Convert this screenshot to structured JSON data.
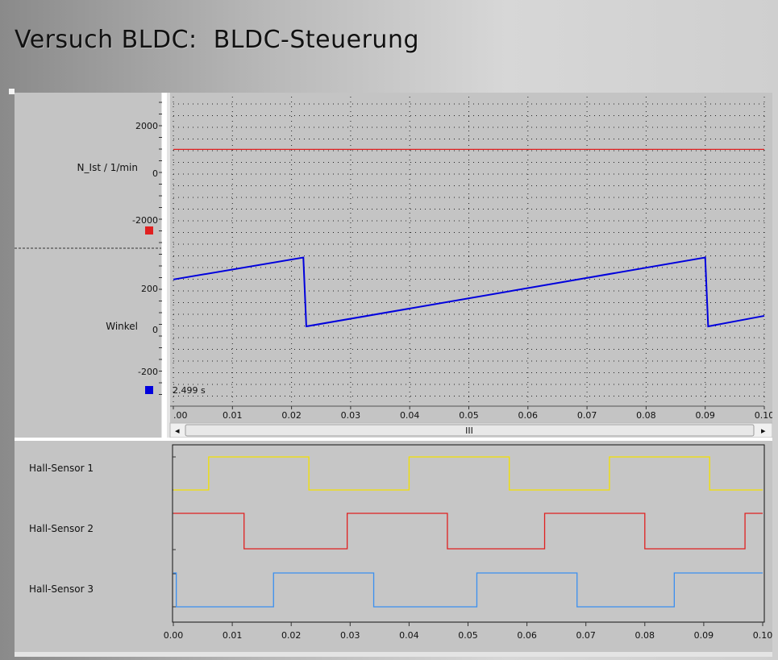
{
  "window": {
    "title": "Versuch BLDC:  BLDC-Steuerung"
  },
  "upper_plot": {
    "cursor_time": "2.499 s",
    "scroll_thumb_glyph": "III",
    "scroll_left_glyph": "◂",
    "scroll_right_glyph": "▸"
  },
  "lower_plot": {},
  "colors": {
    "n_ist": "#e02020",
    "winkel": "#0000dd",
    "hall1": "#f2e000",
    "hall2": "#e02020",
    "hall3": "#3a8ff0",
    "plot_bg": "#c6c6c6"
  },
  "chart_data": [
    {
      "type": "line",
      "ylabel": "N_Ist / 1/min",
      "y_ticks": [
        "2000",
        "0",
        "-2000"
      ],
      "ylim": [
        -3000,
        3000
      ],
      "x_ticks": [
        ".00",
        "0.01",
        "0.02",
        "0.03",
        "0.04",
        "0.05",
        "0.06",
        "0.07",
        "0.08",
        "0.09",
        "0.10"
      ],
      "xlim": [
        0,
        0.1
      ],
      "grid": true,
      "series": [
        {
          "x": [
            0.0,
            0.1
          ],
          "y": [
            930,
            930
          ]
        }
      ]
    },
    {
      "type": "line",
      "ylabel": "Winkel",
      "y_ticks": [
        "200",
        "0",
        "-200"
      ],
      "ylim": [
        -400,
        400
      ],
      "x_ticks": [
        ".00",
        "0.01",
        "0.02",
        "0.03",
        "0.04",
        "0.05",
        "0.06",
        "0.07",
        "0.08",
        "0.09",
        "0.10"
      ],
      "xlim": [
        0,
        0.1
      ],
      "grid": true,
      "series": [
        {
          "x": [
            0.0,
            0.022,
            0.0225,
            0.09,
            0.0905,
            0.1
          ],
          "y": [
            245,
            360,
            0,
            360,
            0,
            55
          ]
        }
      ]
    },
    {
      "type": "line",
      "x_ticks": [
        "0.00",
        "0.01",
        "0.02",
        "0.03",
        "0.04",
        "0.05",
        "0.06",
        "0.07",
        "0.08",
        "0.09",
        "0.10"
      ],
      "xlim": [
        0,
        0.1
      ],
      "grid": false,
      "series": [
        {
          "name": "Hall-Sensor 1",
          "x": [
            0.0,
            0.006,
            0.023,
            0.04,
            0.057,
            0.074,
            0.091,
            0.1
          ],
          "y": [
            0,
            1,
            0,
            1,
            0,
            1,
            0,
            0
          ]
        },
        {
          "name": "Hall-Sensor 2",
          "x": [
            0.0,
            0.012,
            0.0295,
            0.0465,
            0.063,
            0.08,
            0.097,
            0.1
          ],
          "y": [
            1,
            0,
            1,
            0,
            1,
            0,
            1,
            1
          ]
        },
        {
          "name": "Hall-Sensor 3",
          "x": [
            0.0,
            0.0005,
            0.017,
            0.034,
            0.0515,
            0.0685,
            0.085,
            0.1
          ],
          "y": [
            1,
            0,
            1,
            0,
            1,
            0,
            1,
            1
          ]
        }
      ]
    }
  ]
}
